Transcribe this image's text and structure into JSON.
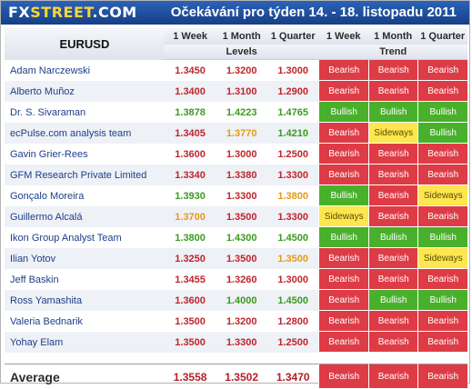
{
  "header": {
    "logo_fx": "FX",
    "logo_street": "STREET",
    "logo_dot": ".COM",
    "title": "Očekávání pro týden 14. - 18. listopadu 2011"
  },
  "table": {
    "pair": "EURUSD",
    "col_week": "1 Week",
    "col_month": "1 Month",
    "col_quarter": "1 Quarter",
    "levels_label": "Levels",
    "trend_week": "1 Week",
    "trend_month": "1 Month",
    "trend_quarter": "1 Quarter",
    "trend_label": "Trend"
  },
  "colors": {
    "bearish": "#dd3c46",
    "bullish": "#49b02c",
    "sideways": "#fde64e",
    "level_red": "#c0242c",
    "level_green": "#3c9a1f",
    "level_orange": "#e39b17"
  },
  "rows": [
    {
      "name": "Adam Narczewski",
      "w": "1.3450",
      "m": "1.3200",
      "q": "1.3000",
      "wc": "red",
      "mc": "red",
      "qc": "red",
      "tw": "Bearish",
      "tm": "Bearish",
      "tq": "Bearish"
    },
    {
      "name": "Alberto Muñoz",
      "w": "1.3400",
      "m": "1.3100",
      "q": "1.2900",
      "wc": "red",
      "mc": "red",
      "qc": "red",
      "tw": "Bearish",
      "tm": "Bearish",
      "tq": "Bearish"
    },
    {
      "name": "Dr. S. Sivaraman",
      "w": "1.3878",
      "m": "1.4223",
      "q": "1.4765",
      "wc": "green",
      "mc": "green",
      "qc": "green",
      "tw": "Bullish",
      "tm": "Bullish",
      "tq": "Bullish"
    },
    {
      "name": "ecPulse.com analysis team",
      "w": "1.3405",
      "m": "1.3770",
      "q": "1.4210",
      "wc": "red",
      "mc": "orange",
      "qc": "green",
      "tw": "Bearish",
      "tm": "Sideways",
      "tq": "Bullish"
    },
    {
      "name": "Gavin Grier-Rees",
      "w": "1.3600",
      "m": "1.3000",
      "q": "1.2500",
      "wc": "red",
      "mc": "red",
      "qc": "red",
      "tw": "Bearish",
      "tm": "Bearish",
      "tq": "Bearish"
    },
    {
      "name": "GFM Research Private Limited",
      "w": "1.3340",
      "m": "1.3380",
      "q": "1.3300",
      "wc": "red",
      "mc": "red",
      "qc": "red",
      "tw": "Bearish",
      "tm": "Bearish",
      "tq": "Bearish"
    },
    {
      "name": "Gonçalo Moreira",
      "w": "1.3930",
      "m": "1.3300",
      "q": "1.3800",
      "wc": "green",
      "mc": "red",
      "qc": "orange",
      "tw": "Bullish",
      "tm": "Bearish",
      "tq": "Sideways"
    },
    {
      "name": "Guillermo Alcalá",
      "w": "1.3700",
      "m": "1.3500",
      "q": "1.3300",
      "wc": "orange",
      "mc": "red",
      "qc": "red",
      "tw": "Sideways",
      "tm": "Bearish",
      "tq": "Bearish"
    },
    {
      "name": "Ikon Group Analyst Team",
      "w": "1.3800",
      "m": "1.4300",
      "q": "1.4500",
      "wc": "green",
      "mc": "green",
      "qc": "green",
      "tw": "Bullish",
      "tm": "Bullish",
      "tq": "Bullish"
    },
    {
      "name": "Ilian Yotov",
      "w": "1.3250",
      "m": "1.3500",
      "q": "1.3500",
      "wc": "red",
      "mc": "red",
      "qc": "orange",
      "tw": "Bearish",
      "tm": "Bearish",
      "tq": "Sideways"
    },
    {
      "name": "Jeff Baskin",
      "w": "1.3455",
      "m": "1.3260",
      "q": "1.3000",
      "wc": "red",
      "mc": "red",
      "qc": "red",
      "tw": "Bearish",
      "tm": "Bearish",
      "tq": "Bearish"
    },
    {
      "name": "Ross Yamashita",
      "w": "1.3600",
      "m": "1.4000",
      "q": "1.4500",
      "wc": "red",
      "mc": "green",
      "qc": "green",
      "tw": "Bearish",
      "tm": "Bullish",
      "tq": "Bullish"
    },
    {
      "name": "Valeria Bednarik",
      "w": "1.3500",
      "m": "1.3200",
      "q": "1.2800",
      "wc": "red",
      "mc": "red",
      "qc": "red",
      "tw": "Bearish",
      "tm": "Bearish",
      "tq": "Bearish"
    },
    {
      "name": "Yohay Elam",
      "w": "1.3500",
      "m": "1.3300",
      "q": "1.2500",
      "wc": "red",
      "mc": "red",
      "qc": "red",
      "tw": "Bearish",
      "tm": "Bearish",
      "tq": "Bearish"
    }
  ],
  "average": {
    "label": "Average",
    "w": "1.3558",
    "m": "1.3502",
    "q": "1.3470",
    "tw": "Bearish",
    "tm": "Bearish",
    "tq": "Bearish"
  }
}
